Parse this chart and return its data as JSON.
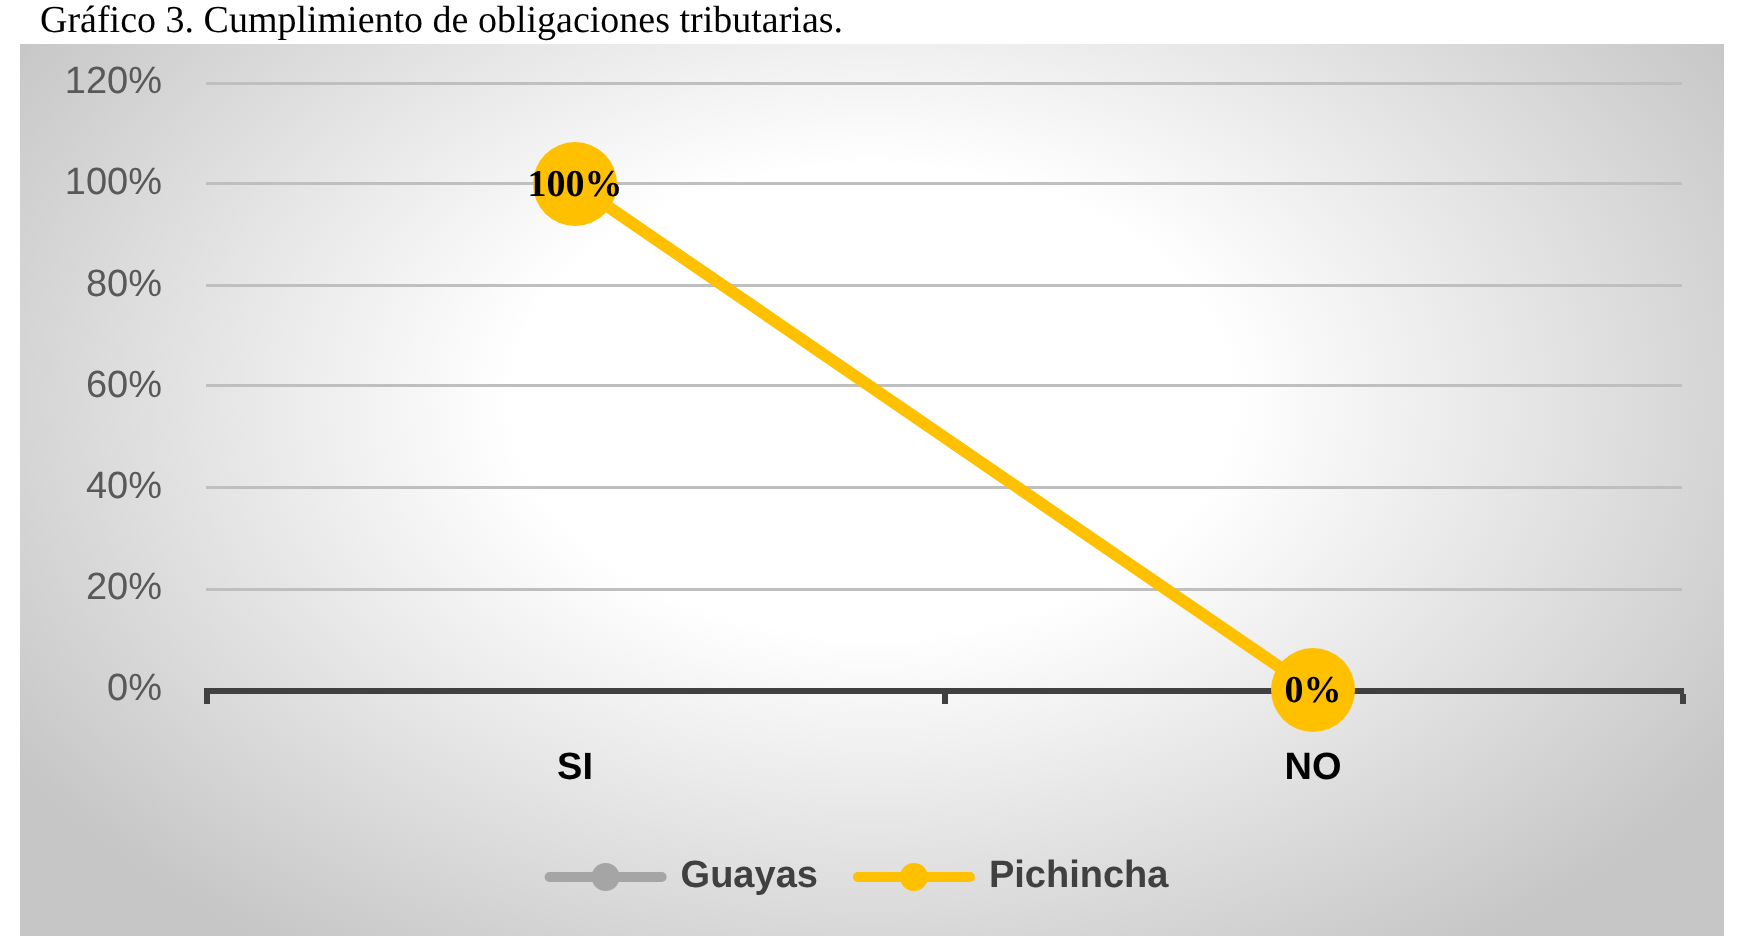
{
  "chart_data": {
    "type": "line",
    "title": "Gráfico 3. Cumplimiento de obligaciones tributarias.",
    "categories": [
      "SI",
      "NO"
    ],
    "series": [
      {
        "name": "Guayas",
        "color": "#a5a5a5",
        "values": [
          null,
          null
        ]
      },
      {
        "name": "Pichincha",
        "color": "#ffc000",
        "values": [
          100,
          0
        ],
        "value_labels": [
          "100%",
          "0%"
        ]
      }
    ],
    "ylim": [
      0,
      120
    ],
    "yticks": [
      {
        "value": 0,
        "label": "0%"
      },
      {
        "value": 20,
        "label": "20%"
      },
      {
        "value": 40,
        "label": "40%"
      },
      {
        "value": 60,
        "label": "60%"
      },
      {
        "value": 80,
        "label": "80%"
      },
      {
        "value": 100,
        "label": "100%"
      },
      {
        "value": 120,
        "label": "120%"
      }
    ],
    "grid": "y",
    "legend": "bottom",
    "marker": "circle",
    "line_style": "solid"
  }
}
